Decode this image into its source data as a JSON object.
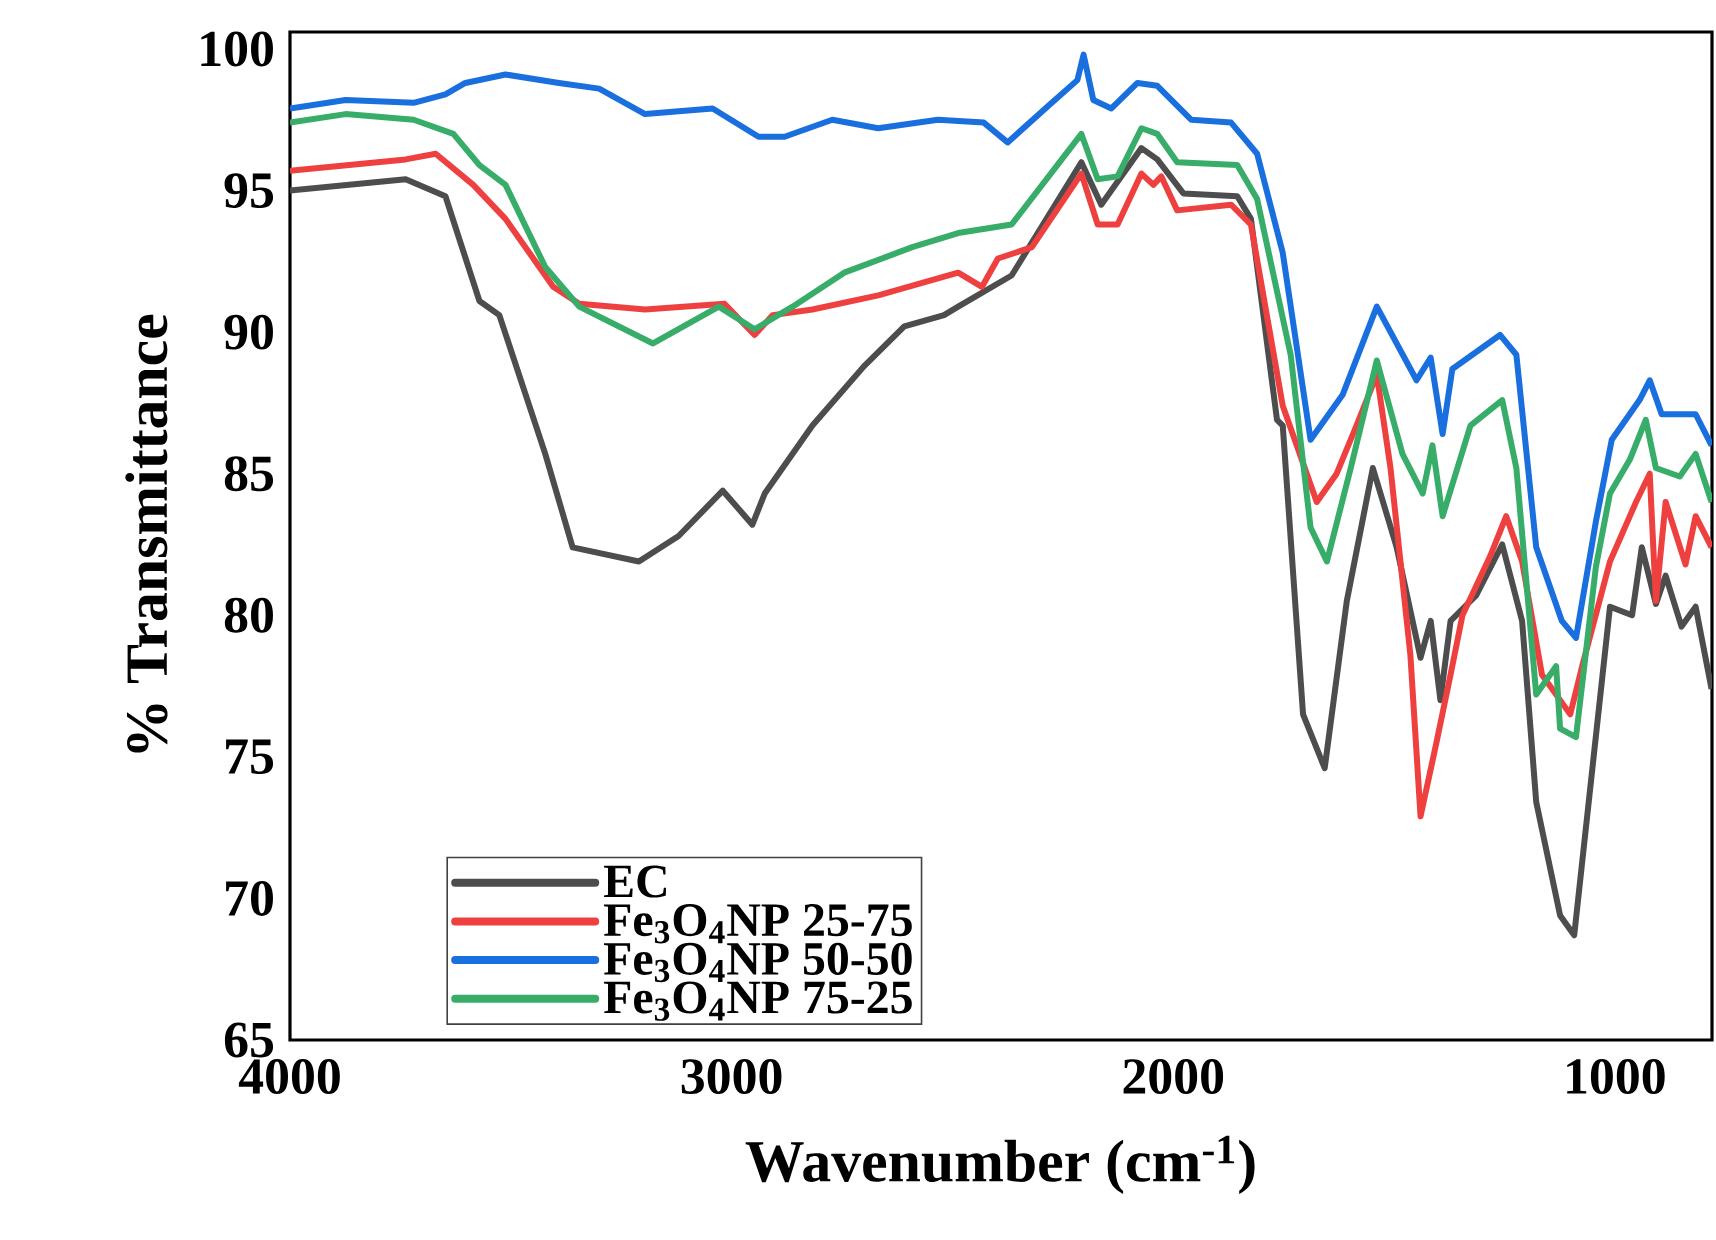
{
  "chart_data": {
    "type": "line",
    "xlabel": "Wavenumber (cm$^{-1}$)",
    "ylabel": "% Transmittance",
    "xlim": [
      4000,
      780
    ],
    "ylim": [
      65,
      100.6
    ],
    "xticks": [
      4000,
      3000,
      2000,
      1000
    ],
    "yticks": [
      65,
      70,
      75,
      80,
      85,
      90,
      95,
      100
    ],
    "legend": "bottom left",
    "line_style": "solid",
    "marker": "none",
    "series": [
      {
        "name": "EC",
        "color": "#4d4d4d",
        "x": [
          4000,
          3738,
          3648,
          3571,
          3526,
          3422,
          3360,
          3210,
          3120,
          3020,
          2953,
          2925,
          2817,
          2700,
          2609,
          2519,
          2487,
          2366,
          2208,
          2163,
          2072,
          2036,
          1977,
          1855,
          1824,
          1765,
          1752,
          1706,
          1657,
          1607,
          1548,
          1494,
          1440,
          1417,
          1395,
          1372,
          1314,
          1255,
          1210,
          1178,
          1124,
          1092,
          1011,
          961,
          939,
          907,
          885,
          849,
          817,
          781
        ],
        "values": [
          95.0,
          95.4,
          94.8,
          91.1,
          90.6,
          85.7,
          82.4,
          81.9,
          82.8,
          84.4,
          83.2,
          84.3,
          86.7,
          88.8,
          90.2,
          90.6,
          90.9,
          92.0,
          96.0,
          94.5,
          96.5,
          96.1,
          94.9,
          94.8,
          94.0,
          86.9,
          86.7,
          76.5,
          74.6,
          80.5,
          85.2,
          82.4,
          78.5,
          79.8,
          77.0,
          79.8,
          80.7,
          82.5,
          79.8,
          73.4,
          69.4,
          68.7,
          80.3,
          80.0,
          82.4,
          80.4,
          81.4,
          79.6,
          80.3,
          77.4
        ]
      },
      {
        "name": "Fe$_{3}$O$_{4}$NP 25-75",
        "color": "#ef4040",
        "x": [
          4000,
          3738,
          3670,
          3585,
          3512,
          3404,
          3345,
          3196,
          3016,
          2948,
          2907,
          2817,
          2668,
          2487,
          2433,
          2397,
          2320,
          2208,
          2171,
          2126,
          2072,
          2045,
          2027,
          1991,
          1869,
          1824,
          1752,
          1675,
          1630,
          1585,
          1539,
          1508,
          1463,
          1440,
          1404,
          1372,
          1345,
          1282,
          1246,
          1210,
          1165,
          1101,
          1074,
          1011,
          952,
          921,
          907,
          885,
          840,
          817,
          781
        ],
        "values": [
          95.7,
          96.1,
          96.3,
          95.2,
          94.0,
          91.6,
          91.0,
          90.8,
          91.0,
          89.9,
          90.6,
          90.8,
          91.3,
          92.1,
          91.6,
          92.6,
          93.0,
          95.6,
          93.8,
          93.8,
          95.6,
          95.2,
          95.5,
          94.3,
          94.5,
          93.8,
          87.4,
          84.0,
          85.0,
          86.7,
          88.5,
          85.2,
          78.6,
          72.9,
          75.5,
          77.9,
          80.0,
          82.1,
          83.5,
          81.9,
          77.9,
          76.5,
          78.2,
          81.9,
          84.0,
          85.0,
          80.5,
          84.0,
          81.8,
          83.5,
          82.4
        ]
      },
      {
        "name": "Fe$_{3}$O$_{4}$NP 50-50",
        "color": "#1a6fde",
        "x": [
          4000,
          3874,
          3720,
          3648,
          3603,
          3512,
          3391,
          3300,
          3196,
          3043,
          2939,
          2880,
          2772,
          2668,
          2533,
          2429,
          2375,
          2275,
          2217,
          2203,
          2181,
          2140,
          2081,
          2036,
          1959,
          1869,
          1810,
          1752,
          1689,
          1616,
          1539,
          1449,
          1417,
          1390,
          1368,
          1260,
          1223,
          1178,
          1120,
          1088,
          1043,
          1007,
          944,
          921,
          894,
          817,
          781
        ],
        "values": [
          97.9,
          98.2,
          98.1,
          98.4,
          98.8,
          99.1,
          98.8,
          98.6,
          97.7,
          97.9,
          96.9,
          96.9,
          97.5,
          97.2,
          97.5,
          97.4,
          96.7,
          98.1,
          98.9,
          99.8,
          98.2,
          97.9,
          98.8,
          98.7,
          97.5,
          97.4,
          96.3,
          92.8,
          86.2,
          87.8,
          90.9,
          88.3,
          89.1,
          86.4,
          88.7,
          89.9,
          89.2,
          82.4,
          79.8,
          79.2,
          83.3,
          86.2,
          87.6,
          88.3,
          87.1,
          87.1,
          86.0
        ]
      },
      {
        "name": "Fe$_{3}$O$_{4}$NP 75-25",
        "color": "#38ad6a",
        "x": [
          4000,
          3874,
          3720,
          3630,
          3571,
          3512,
          3422,
          3345,
          3178,
          3029,
          2948,
          2862,
          2745,
          2591,
          2487,
          2366,
          2208,
          2171,
          2126,
          2072,
          2036,
          1991,
          1855,
          1810,
          1734,
          1689,
          1652,
          1598,
          1539,
          1481,
          1435,
          1413,
          1390,
          1327,
          1255,
          1223,
          1178,
          1133,
          1124,
          1088,
          1043,
          1011,
          966,
          930,
          907,
          853,
          817,
          781
        ],
        "values": [
          97.4,
          97.7,
          97.5,
          97.0,
          95.9,
          95.2,
          92.3,
          90.9,
          89.6,
          90.9,
          90.1,
          90.9,
          92.1,
          93.0,
          93.5,
          93.8,
          97.0,
          95.4,
          95.5,
          97.2,
          97.0,
          96.0,
          95.9,
          94.7,
          89.2,
          83.1,
          81.9,
          85.2,
          89.0,
          85.7,
          84.3,
          86.0,
          83.5,
          86.7,
          87.6,
          85.2,
          77.2,
          78.2,
          76.0,
          75.7,
          81.7,
          84.3,
          85.5,
          86.9,
          85.2,
          84.9,
          85.7,
          84.0
        ]
      }
    ]
  }
}
